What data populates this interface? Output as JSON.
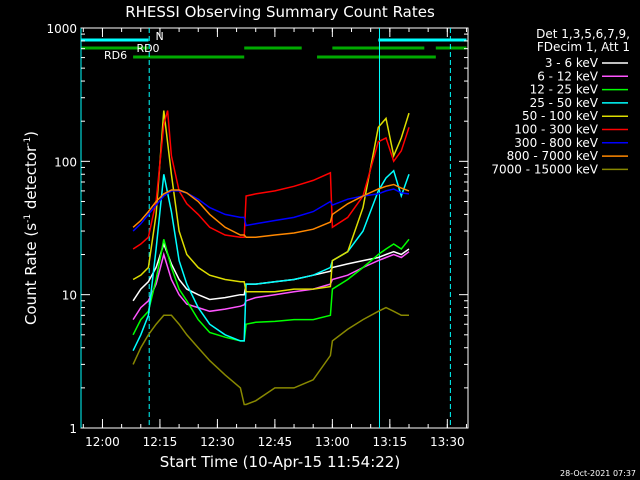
{
  "chart_data": {
    "type": "line",
    "title": "RHESSI Observing Summary Count Rates",
    "xlabel": "Start Time (10-Apr-15 11:54:22)",
    "ylabel_main": "Count Rate (s",
    "ylabel_sup1": "-1",
    "ylabel_mid": " detector",
    "ylabel_sup2": "-1",
    "ylabel_end": ")",
    "y_scale": "log",
    "ylim": [
      1,
      1000
    ],
    "y_ticks": [
      {
        "value": 1,
        "label": "1"
      },
      {
        "value": 10,
        "label": "10"
      },
      {
        "value": 100,
        "label": "100"
      },
      {
        "value": 1000,
        "label": "1000"
      }
    ],
    "x_ticks": [
      {
        "value": 0,
        "label": "12:00"
      },
      {
        "value": 15,
        "label": "12:15"
      },
      {
        "value": 30,
        "label": "12:30"
      },
      {
        "value": 45,
        "label": "12:45"
      },
      {
        "value": 60,
        "label": "13:00"
      },
      {
        "value": 75,
        "label": "13:15"
      },
      {
        "value": 90,
        "label": "13:30"
      }
    ],
    "x_unit_note": "x values are minutes after 12:00",
    "xlim": [
      -5.6,
      95.4
    ],
    "legend_position": "right",
    "legend_header": [
      "Det 1,3,5,6,7,9,",
      "FDecim 1, Att 1"
    ],
    "footer_stamp": "28-Oct-2021 07:37",
    "flags": [
      {
        "name": "N",
        "label": "N",
        "color": "#00ffff",
        "segments": [
          [
            -5.5,
            12
          ],
          [
            72,
            95
          ]
        ]
      },
      {
        "name": "RD0",
        "label": "RD0",
        "color": "#00aa00",
        "segments": [
          [
            -5.5,
            12
          ],
          [
            37,
            52
          ],
          [
            60,
            84
          ],
          [
            87,
            95
          ]
        ]
      },
      {
        "name": "RD6",
        "label": "RD6",
        "color": "#00aa00",
        "segments": [
          [
            8,
            37
          ],
          [
            56,
            87
          ]
        ]
      }
    ],
    "vlines": [
      {
        "x": -5.6,
        "color": "#00ffff",
        "dashed": false
      },
      {
        "x": 12.2,
        "color": "#00ffff",
        "dashed": true
      },
      {
        "x": 72.3,
        "color": "#00ffff",
        "dashed": false
      },
      {
        "x": 90.8,
        "color": "#00ffff",
        "dashed": true
      }
    ],
    "series": [
      {
        "name": "3 - 6 keV",
        "color": "#ffffff",
        "x": [
          8,
          10,
          12,
          14,
          16,
          18,
          20,
          22,
          25,
          28,
          32,
          36,
          37,
          37.5,
          40,
          45,
          50,
          55,
          59.5,
          60,
          64,
          68,
          72,
          74,
          76,
          78,
          80
        ],
        "values": [
          9,
          11,
          12.5,
          16,
          24,
          17,
          13,
          11,
          10,
          9.2,
          9.5,
          10,
          10,
          12,
          12,
          12.5,
          13,
          14,
          15,
          16,
          17,
          18,
          19,
          20,
          21,
          20,
          22
        ]
      },
      {
        "name": "6 - 12 keV",
        "color": "#ff55ff",
        "x": [
          8,
          10,
          12,
          14,
          16,
          18,
          20,
          22,
          25,
          28,
          32,
          36,
          37,
          37.5,
          40,
          45,
          50,
          55,
          59.5,
          60,
          64,
          68,
          72,
          74,
          76,
          78,
          80
        ],
        "values": [
          6.5,
          8,
          9,
          12,
          20,
          13,
          10,
          8.5,
          8,
          7.5,
          7.8,
          8.2,
          8.4,
          9,
          9.5,
          10,
          10.5,
          11,
          12,
          13,
          14,
          16,
          18,
          19,
          20,
          19,
          21
        ]
      },
      {
        "name": "12 - 25 keV",
        "color": "#00ff00",
        "x": [
          8,
          10,
          12,
          14,
          16,
          18,
          20,
          22,
          25,
          28,
          32,
          36,
          37,
          37.5,
          40,
          45,
          50,
          55,
          59.5,
          60,
          64,
          68,
          72,
          74,
          76,
          78,
          80
        ],
        "values": [
          5,
          6.5,
          7.5,
          13,
          26,
          16,
          11,
          9,
          6.5,
          5.2,
          4.8,
          4.5,
          4.5,
          6,
          6.2,
          6.3,
          6.5,
          6.5,
          7,
          11,
          13,
          16,
          20,
          22,
          24,
          22,
          26
        ]
      },
      {
        "name": "25 - 50 keV",
        "color": "#00ffff",
        "x": [
          8,
          10,
          12,
          14,
          16,
          18,
          20,
          22,
          25,
          28,
          32,
          36,
          37,
          37.5,
          40,
          45,
          50,
          55,
          59.5,
          60,
          64,
          68,
          72,
          74,
          76,
          78,
          80
        ],
        "values": [
          3.8,
          5,
          7,
          22,
          80,
          42,
          18,
          12,
          8,
          6,
          5,
          4.5,
          4.5,
          12,
          12,
          12.5,
          13,
          14,
          16,
          18,
          21,
          30,
          60,
          75,
          85,
          55,
          80
        ]
      },
      {
        "name": "50 - 100 keV",
        "color": "#dddd00",
        "x": [
          8,
          10,
          12,
          14,
          16,
          18,
          20,
          22,
          25,
          28,
          32,
          36,
          37,
          37.5,
          40,
          45,
          50,
          55,
          59.5,
          60,
          64,
          68,
          72,
          74,
          76,
          78,
          80
        ],
        "values": [
          13,
          14,
          16,
          40,
          240,
          80,
          30,
          20,
          16,
          14,
          13,
          12.5,
          12.5,
          10.5,
          10.5,
          10.5,
          11,
          11,
          11.5,
          18,
          21,
          45,
          180,
          210,
          110,
          150,
          230
        ]
      },
      {
        "name": "100 - 300 keV",
        "color": "#ff0000",
        "x": [
          8,
          10,
          12,
          14,
          16,
          17,
          18,
          20,
          22,
          25,
          28,
          32,
          36,
          37,
          37.5,
          40,
          45,
          50,
          55,
          59.5,
          60,
          64,
          68,
          72,
          74,
          76,
          78,
          80
        ],
        "values": [
          22,
          24,
          27,
          50,
          190,
          240,
          110,
          60,
          48,
          40,
          32,
          28,
          27,
          27,
          55,
          57,
          60,
          65,
          72,
          82,
          32,
          38,
          55,
          140,
          150,
          100,
          120,
          180
        ]
      },
      {
        "name": "300 - 800 keV",
        "color": "#0000ff",
        "x": [
          8,
          10,
          12,
          14,
          16,
          18,
          20,
          22,
          25,
          28,
          32,
          36,
          37,
          37.5,
          40,
          45,
          50,
          55,
          59.5,
          60,
          64,
          68,
          72,
          74,
          76,
          78,
          80
        ],
        "values": [
          30,
          34,
          40,
          47,
          55,
          60,
          60,
          58,
          52,
          45,
          40,
          38,
          38,
          33,
          34,
          36,
          38,
          42,
          50,
          47,
          52,
          55,
          57,
          60,
          62,
          58,
          57
        ]
      },
      {
        "name": "800 - 7000 keV",
        "color": "#ff8800",
        "x": [
          8,
          10,
          12,
          14,
          16,
          18,
          20,
          22,
          25,
          28,
          32,
          36,
          37,
          37.5,
          40,
          45,
          50,
          55,
          59.5,
          60,
          64,
          68,
          72,
          74,
          76,
          78,
          80
        ],
        "values": [
          32,
          36,
          42,
          50,
          57,
          61,
          61,
          58,
          50,
          40,
          32,
          28,
          28,
          27,
          27,
          28,
          29,
          31,
          35,
          40,
          48,
          55,
          62,
          65,
          67,
          63,
          60
        ]
      },
      {
        "name": "7000 - 15000 keV",
        "color": "#888800",
        "x": [
          8,
          10,
          12,
          14,
          16,
          18,
          20,
          22,
          25,
          28,
          32,
          36,
          37,
          37.5,
          40,
          45,
          50,
          55,
          59.5,
          60,
          64,
          68,
          72,
          74,
          76,
          78,
          80
        ],
        "values": [
          3,
          4,
          5,
          6,
          7,
          7,
          6,
          5,
          4,
          3.2,
          2.5,
          2,
          1.5,
          1.5,
          1.6,
          2,
          2,
          2.3,
          3.5,
          4.5,
          5.5,
          6.5,
          7.5,
          8,
          7.5,
          7,
          7
        ]
      }
    ]
  }
}
